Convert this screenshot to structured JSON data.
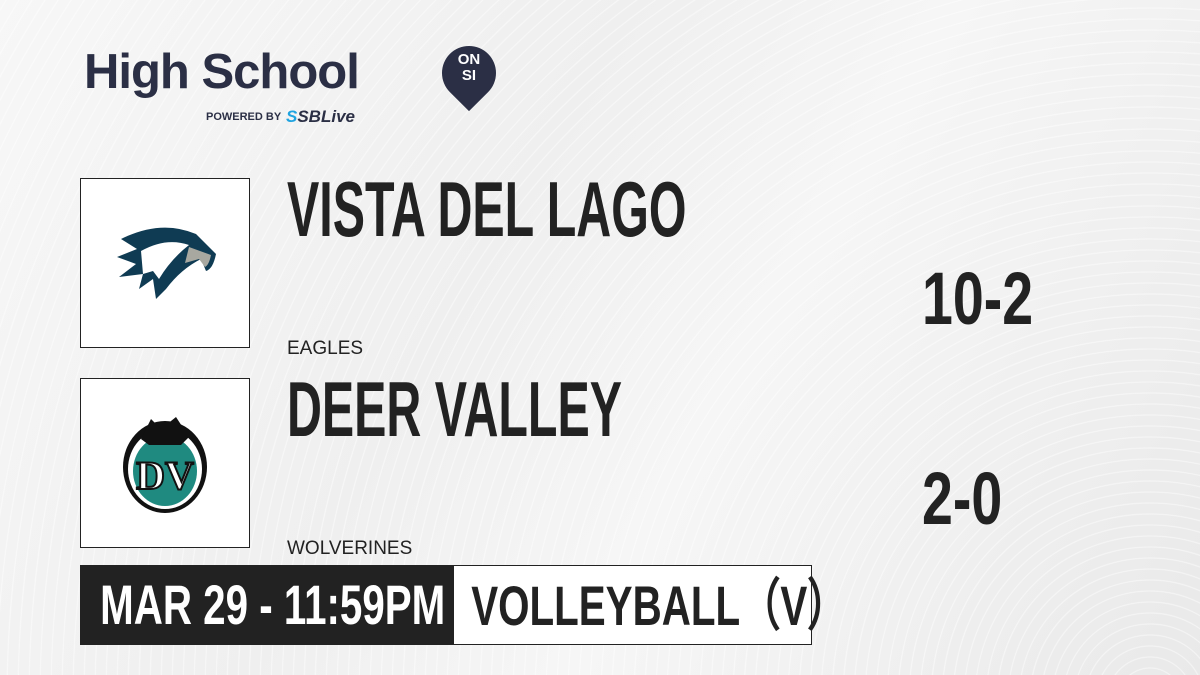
{
  "brand": {
    "title": "High School",
    "badge_top": "ON",
    "badge_bottom": "SI",
    "powered_by": "POWERED BY",
    "partner_s": "S",
    "partner": "SBLive"
  },
  "teams": [
    {
      "name": "VISTA DEL LAGO",
      "mascot": "EAGLES",
      "record": "10-2",
      "logo": "eagle-logo"
    },
    {
      "name": "DEER VALLEY",
      "mascot": "WOLVERINES",
      "record": "2-0",
      "logo": "dv-wolverine-logo"
    }
  ],
  "game": {
    "datetime": "MAR 29 - 11:59PM",
    "sport": "VOLLEYBALL（V）"
  },
  "colors": {
    "brand": "#2b2f45",
    "accent": "#1fa3e0",
    "eagle": "#0f3b53",
    "dv_teal": "#1f8a80"
  }
}
